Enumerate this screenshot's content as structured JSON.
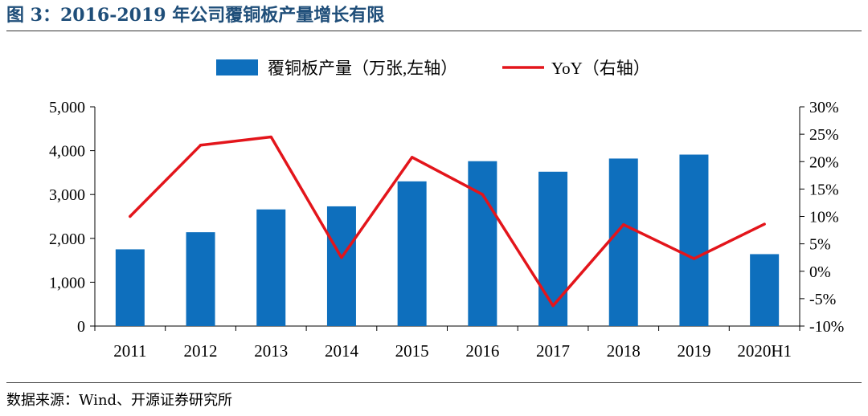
{
  "header": {
    "title": "图 3：2016-2019 年公司覆铜板产量增长有限"
  },
  "footer": {
    "source": "数据来源：Wind、开源证券研究所"
  },
  "colors": {
    "bar": "#0e6fbd",
    "line": "#e3151b",
    "title": "#1f4e79"
  },
  "chart_data": {
    "type": "bar",
    "title": "",
    "categories": [
      "2011",
      "2012",
      "2013",
      "2014",
      "2015",
      "2016",
      "2017",
      "2018",
      "2019",
      "2020H1"
    ],
    "series": [
      {
        "name": "覆铜板产量（万张,左轴）",
        "type": "bar",
        "axis": "left",
        "values": [
          1750,
          2140,
          2660,
          2730,
          3300,
          3760,
          3520,
          3820,
          3910,
          1640
        ]
      },
      {
        "name": "YoY（右轴）",
        "type": "line",
        "axis": "right",
        "values": [
          10.0,
          23.0,
          24.5,
          2.5,
          20.8,
          14.0,
          -6.3,
          8.5,
          2.3,
          8.6
        ]
      }
    ],
    "y_left": {
      "min": 0,
      "max": 5000,
      "ticks": [
        0,
        1000,
        2000,
        3000,
        4000,
        5000
      ],
      "tick_labels": [
        "0",
        "1,000",
        "2,000",
        "3,000",
        "4,000",
        "5,000"
      ]
    },
    "y_right": {
      "min": -10,
      "max": 30,
      "ticks": [
        -10,
        -5,
        0,
        5,
        10,
        15,
        20,
        25,
        30
      ],
      "tick_labels": [
        "-10%",
        "-5%",
        "0%",
        "5%",
        "10%",
        "15%",
        "20%",
        "25%",
        "30%"
      ]
    },
    "grid": false,
    "legend_position": "top"
  }
}
